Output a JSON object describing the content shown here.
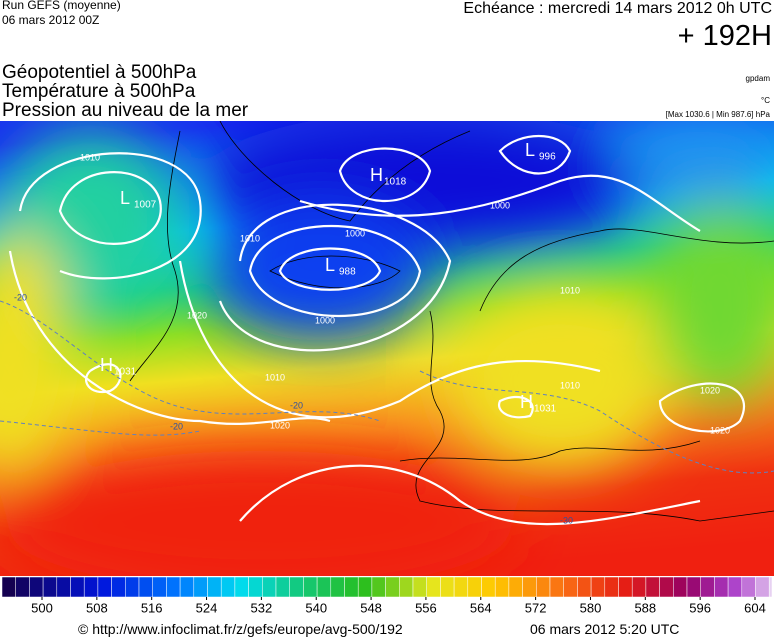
{
  "header": {
    "run": "Run GEFS (moyenne)",
    "run_date": "06 mars 2012 00Z",
    "valid": "Echéance : mercredi 14 mars 2012 0h UTC",
    "lead": "+ 192H",
    "fields": [
      "Géopotentiel à 500hPa",
      "Température à 500hPa",
      "Pression au niveau de la mer"
    ],
    "units": [
      "gpdam",
      "°C",
      "[Max 1030.6 | Min 987.6] hPa"
    ]
  },
  "map": {
    "centers": [
      {
        "letter": "H",
        "value": "1018"
      },
      {
        "letter": "L",
        "value": "996"
      },
      {
        "letter": "L",
        "value": "1007"
      },
      {
        "letter": "L",
        "value": "988"
      },
      {
        "letter": "H",
        "value": "1031"
      },
      {
        "letter": "H",
        "value": "1031"
      }
    ],
    "isobar_labels": [
      "1010",
      "1000",
      "1010",
      "1000",
      "1020",
      "1010",
      "1020",
      "1000",
      "1020",
      "1010",
      "1020",
      "1010"
    ],
    "isotherm_labels": [
      "-20",
      "-20",
      "-20",
      "-30"
    ]
  },
  "scale": {
    "ticks": [
      500,
      508,
      516,
      524,
      532,
      540,
      548,
      556,
      564,
      572,
      580,
      588,
      596,
      604
    ]
  },
  "footer": {
    "url": "© http://www.infoclimat.fr/z/gefs/europe/avg-500/192",
    "date": "06 mars 2012  5:20 UTC"
  }
}
